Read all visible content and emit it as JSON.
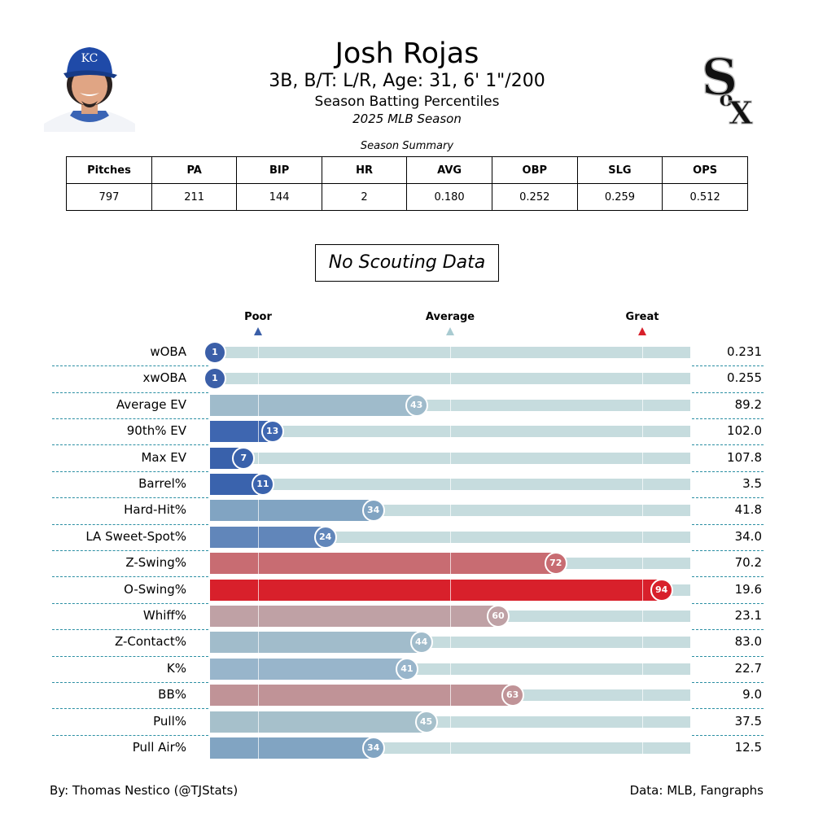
{
  "header": {
    "player_name": "Josh Rojas",
    "bio": "3B, B/T: L/R, Age: 31, 6' 1\"/200",
    "subtitle": "Season Batting Percentiles",
    "season": "2025 MLB Season",
    "headshot_icon": "player-headshot-kc-cap",
    "team_logo_icon": "chicago-white-sox-logo"
  },
  "summary": {
    "caption": "Season Summary",
    "columns": [
      "Pitches",
      "PA",
      "BIP",
      "HR",
      "AVG",
      "OBP",
      "SLG",
      "OPS"
    ],
    "values": [
      "797",
      "211",
      "144",
      "2",
      "0.180",
      "0.252",
      "0.259",
      "0.512"
    ]
  },
  "scouting": {
    "text": "No Scouting Data"
  },
  "scale": {
    "poor": {
      "label": "Poor",
      "color": "#3b5fa8",
      "pct": 10
    },
    "average": {
      "label": "Average",
      "color": "#a9cbd1",
      "pct": 50
    },
    "great": {
      "label": "Great",
      "color": "#d8202b",
      "pct": 90
    }
  },
  "footer": {
    "credit": "By: Thomas Nestico (@TJStats)",
    "source": "Data: MLB, Fangraphs"
  },
  "chart_data": {
    "type": "bar",
    "title": "Season Batting Percentiles",
    "orientation": "horizontal",
    "xlim": [
      0,
      100
    ],
    "reference_lines": [
      10,
      50,
      90
    ],
    "categories": [
      "wOBA",
      "xwOBA",
      "Average EV",
      "90th% EV",
      "Max EV",
      "Barrel%",
      "Hard-Hit%",
      "LA Sweet-Spot%",
      "Z-Swing%",
      "O-Swing%",
      "Whiff%",
      "Z-Contact%",
      "K%",
      "BB%",
      "Pull%",
      "Pull Air%"
    ],
    "percentiles": [
      1,
      1,
      43,
      13,
      7,
      11,
      34,
      24,
      72,
      94,
      60,
      44,
      41,
      63,
      45,
      34
    ],
    "values": [
      "0.231",
      "0.255",
      "89.2",
      "102.0",
      "107.8",
      "3.5",
      "41.8",
      "34.0",
      "70.2",
      "19.6",
      "23.1",
      "83.0",
      "22.7",
      "9.0",
      "37.5",
      "12.5"
    ],
    "colors": [
      "#3b5fa8",
      "#3b5fa8",
      "#9fbbcb",
      "#3e66b0",
      "#3961ab",
      "#3a63ad",
      "#81a4c2",
      "#6186ba",
      "#c86c72",
      "#d8202b",
      "#bfa1a5",
      "#a1bccb",
      "#98b5cb",
      "#c09397",
      "#a6c0cb",
      "#81a4c2"
    ]
  }
}
